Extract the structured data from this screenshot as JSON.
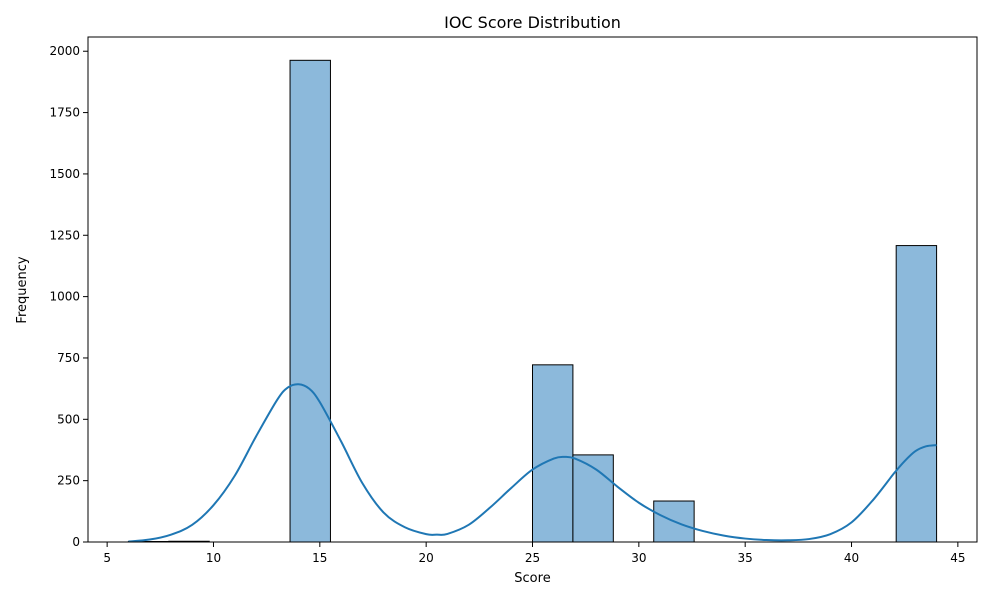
{
  "chart_data": {
    "type": "histogram",
    "title": "IOC Score Distribution",
    "xlabel": "Score",
    "ylabel": "Frequency",
    "xlim": [
      4.1,
      45.9
    ],
    "ylim": [
      0,
      2058
    ],
    "x_ticks": [
      5,
      10,
      15,
      20,
      25,
      30,
      35,
      40,
      45
    ],
    "y_ticks": [
      0,
      250,
      500,
      750,
      1000,
      1250,
      1500,
      1750,
      2000
    ],
    "bin_edges": [
      6.0,
      7.9,
      9.8,
      11.7,
      13.6,
      15.5,
      17.4,
      19.3,
      21.2,
      23.1,
      25.0,
      26.9,
      28.8,
      30.7,
      32.6,
      34.5,
      36.4,
      38.3,
      40.2,
      42.1,
      44.0
    ],
    "counts": [
      2,
      3,
      0,
      0,
      1963,
      0,
      0,
      0,
      0,
      0,
      722,
      355,
      0,
      167,
      0,
      0,
      0,
      0,
      0,
      1208
    ],
    "bar_color": "#8cb9db",
    "bar_edge_color": "#000000",
    "kde": {
      "color": "#1f77b4",
      "x": [
        6.0,
        7,
        8,
        9,
        10,
        11,
        12,
        13,
        13.5,
        14,
        14.5,
        15,
        16,
        17,
        18,
        19,
        20,
        20.5,
        21,
        22,
        23,
        24,
        25,
        26,
        26.5,
        27,
        28,
        29,
        30,
        31,
        32,
        33,
        34,
        35,
        36,
        37,
        38,
        39,
        40,
        41,
        42,
        42.5,
        43,
        43.5,
        44.0
      ],
      "y": [
        2,
        10,
        30,
        70,
        150,
        270,
        430,
        580,
        630,
        643,
        625,
        570,
        410,
        240,
        120,
        60,
        32,
        30,
        33,
        70,
        140,
        220,
        295,
        340,
        347,
        340,
        295,
        225,
        160,
        110,
        72,
        45,
        26,
        14,
        8,
        7,
        12,
        32,
        80,
        170,
        280,
        330,
        370,
        390,
        395
      ]
    }
  }
}
